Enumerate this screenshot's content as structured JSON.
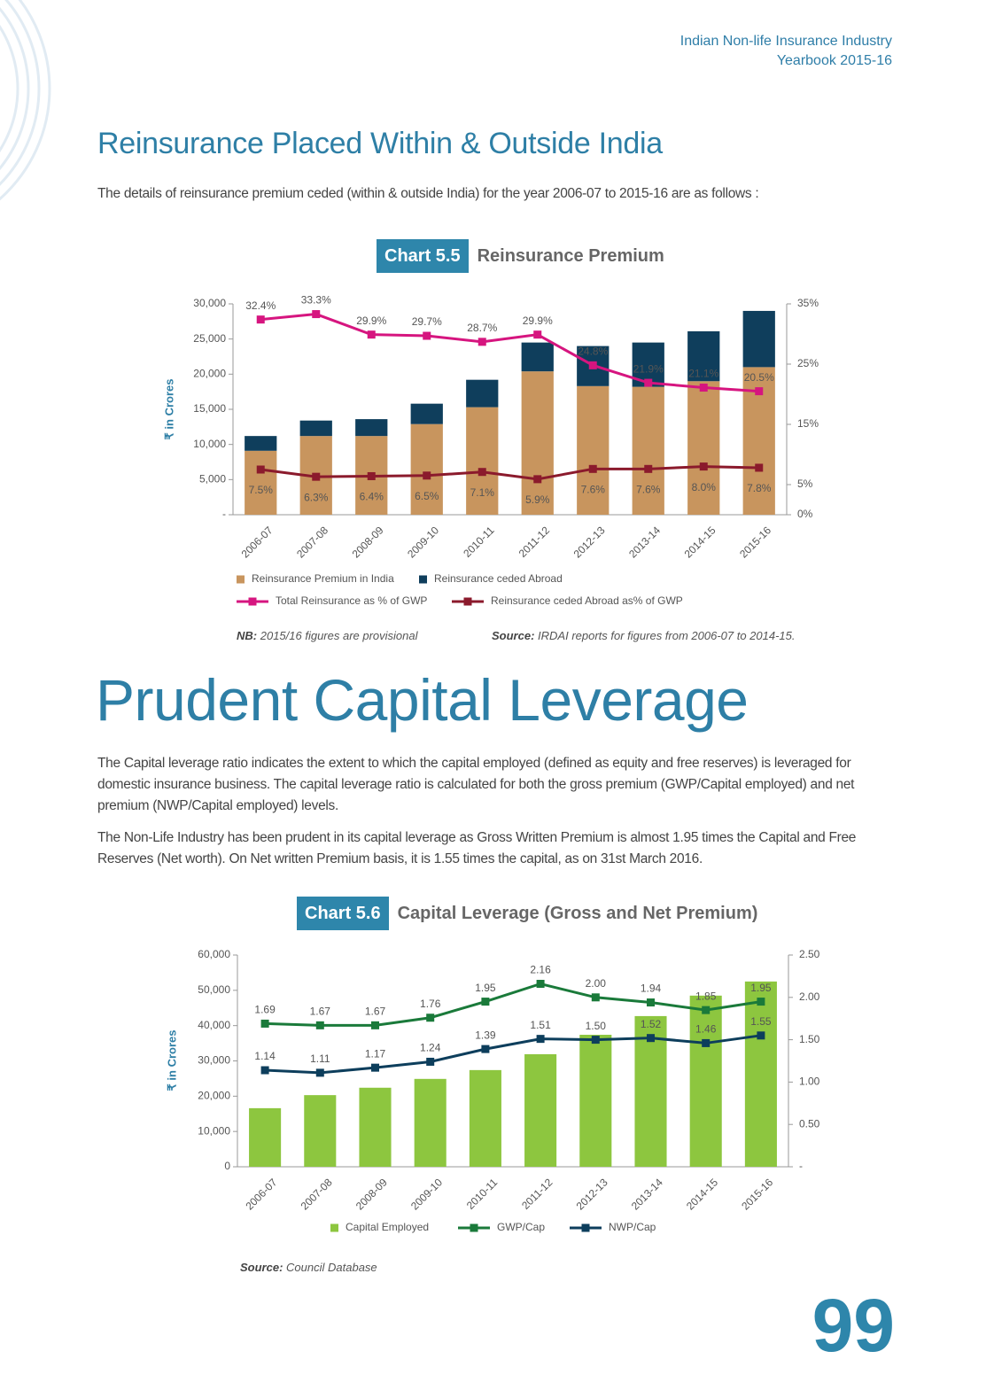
{
  "header": {
    "lines": [
      "Indian Non-life Insurance Industry",
      "Yearbook 2015-16"
    ]
  },
  "sections": [
    {
      "title": "Reinsurance Placed Within & Outside India",
      "paragraphs": [
        "The details of reinsurance premium ceded (within & outside India) for the year 2006-07 to 2015-16 are as follows :"
      ]
    },
    {
      "title": "Prudent Capital Leverage",
      "paragraphs": [
        "The Capital leverage ratio indicates the extent to which the capital employed (defined as equity and free reserves) is leveraged for domestic insurance business. The capital leverage ratio is calculated for both the gross premium (GWP/Capital employed) and net premium (NWP/Capital employed) levels.",
        "The Non-Life Industry has been prudent in its capital leverage as Gross Written Premium is almost 1.95 times the Capital and Free Reserves (Net worth). On Net written Premium basis, it is 1.55 times the capital, as on 31st March 2016."
      ]
    }
  ],
  "chart_data": [
    {
      "type": "combo",
      "label": "Chart 5.5",
      "title": "Reinsurance Premium",
      "y_label": "₹ in Crores",
      "stacked": true,
      "categories": [
        "2006-07",
        "2007-08",
        "2008-09",
        "2009-10",
        "2010-11",
        "2011-12",
        "2012-13",
        "2013-14",
        "2014-15",
        "2015-16"
      ],
      "series": [
        {
          "name": "Reinsurance Premium in India",
          "type": "bar",
          "color": "#c8955e",
          "values": [
            9100,
            11200,
            11200,
            12900,
            15300,
            20400,
            18300,
            18200,
            19000,
            21000
          ]
        },
        {
          "name": "Reinsurance ceded Abroad",
          "type": "bar",
          "color": "#0f3e5c",
          "values": [
            2100,
            2200,
            2400,
            2900,
            3900,
            4100,
            5700,
            6300,
            7100,
            8000
          ]
        },
        {
          "name": "Total Reinsurance as % of GWP",
          "type": "line",
          "axis": "y2",
          "color": "#d6157f",
          "values": [
            32.4,
            33.3,
            29.9,
            29.7,
            28.7,
            29.9,
            24.8,
            21.9,
            21.1,
            20.5
          ],
          "value_labels": [
            "32.4%",
            "33.3%",
            "29.9%",
            "29.7%",
            "28.7%",
            "29.9%",
            "24.8%",
            "21.9%",
            "21.1%",
            "20.5%"
          ]
        },
        {
          "name": "Reinsurance ceded Abroad as% of GWP",
          "type": "line",
          "axis": "y2",
          "color": "#8b1a2c",
          "values": [
            7.5,
            6.3,
            6.4,
            6.5,
            7.1,
            5.9,
            7.6,
            7.6,
            8.0,
            7.8
          ],
          "value_labels": [
            "7.5%",
            "6.3%",
            "6.4%",
            "6.5%",
            "7.1%",
            "5.9%",
            "7.6%",
            "7.6%",
            "8.0%",
            "7.8%"
          ]
        }
      ],
      "ylim": [
        0,
        30000
      ],
      "yticks": [
        {
          "value": 0,
          "label": "-"
        },
        {
          "value": 5000,
          "label": "5,000"
        },
        {
          "value": 10000,
          "label": "10,000"
        },
        {
          "value": 15000,
          "label": "15,000"
        },
        {
          "value": 20000,
          "label": "20,000"
        },
        {
          "value": 25000,
          "label": "25,000"
        },
        {
          "value": 30000,
          "label": "30,000"
        }
      ],
      "y2lim": [
        0,
        35
      ],
      "y2ticks": [
        {
          "value": 0,
          "label": "0%"
        },
        {
          "value": 5,
          "label": "5%"
        },
        {
          "value": 15,
          "label": "15%"
        },
        {
          "value": 25,
          "label": "25%"
        },
        {
          "value": 35,
          "label": "35%"
        }
      ],
      "note": {
        "label": "NB:",
        "text": "2015/16 figures are provisional"
      },
      "source": {
        "label": "Source:",
        "text": "IRDAI reports for figures from 2006-07 to 2014-15."
      }
    },
    {
      "type": "combo",
      "label": "Chart 5.6",
      "title": "Capital Leverage (Gross and Net Premium)",
      "y_label": "₹ in Crores",
      "stacked": false,
      "categories": [
        "2006-07",
        "2007-08",
        "2008-09",
        "2009-10",
        "2010-11",
        "2011-12",
        "2012-13",
        "2013-14",
        "2014-15",
        "2015-16"
      ],
      "series": [
        {
          "name": "Capital Employed",
          "type": "bar",
          "color": "#8dc63f",
          "values": [
            16600,
            20300,
            22400,
            24900,
            27400,
            31900,
            37400,
            42700,
            48500,
            52500
          ]
        },
        {
          "name": "GWP/Cap",
          "type": "line",
          "axis": "y2",
          "color": "#1a7a3a",
          "values": [
            1.69,
            1.67,
            1.67,
            1.76,
            1.95,
            2.16,
            2.0,
            1.94,
            1.85,
            1.95
          ],
          "value_labels": [
            "1.69",
            "1.67",
            "1.67",
            "1.76",
            "1.95",
            "2.16",
            "2.00",
            "1.94",
            "1.85",
            "1.95"
          ]
        },
        {
          "name": "NWP/Cap",
          "type": "line",
          "axis": "y2",
          "color": "#0d3e5c",
          "values": [
            1.14,
            1.11,
            1.17,
            1.24,
            1.39,
            1.51,
            1.5,
            1.52,
            1.46,
            1.55
          ],
          "value_labels": [
            "1.14",
            "1.11",
            "1.17",
            "1.24",
            "1.39",
            "1.51",
            "1.50",
            "1.52",
            "1.46",
            "1.55"
          ]
        }
      ],
      "ylim": [
        0,
        60000
      ],
      "yticks": [
        0,
        {
          "value": 10000,
          "label": "10,000"
        },
        {
          "value": 20000,
          "label": "20,000"
        },
        {
          "value": 30000,
          "label": "30,000"
        },
        {
          "value": 40000,
          "label": "40,000"
        },
        {
          "value": 50000,
          "label": "50,000"
        },
        {
          "value": 60000,
          "label": "60,000"
        }
      ],
      "y2lim": [
        0,
        2.5
      ],
      "y2ticks": [
        {
          "value": 0,
          "label": "-"
        },
        {
          "value": 0.5,
          "label": "0.50"
        },
        {
          "value": 1,
          "label": "1.00"
        },
        {
          "value": 1.5,
          "label": "1.50"
        },
        {
          "value": 2,
          "label": "2.00"
        },
        {
          "value": 2.5,
          "label": "2.50"
        }
      ],
      "source": {
        "label": "Source:",
        "text": "Council Database"
      }
    }
  ],
  "page_number": 99
}
